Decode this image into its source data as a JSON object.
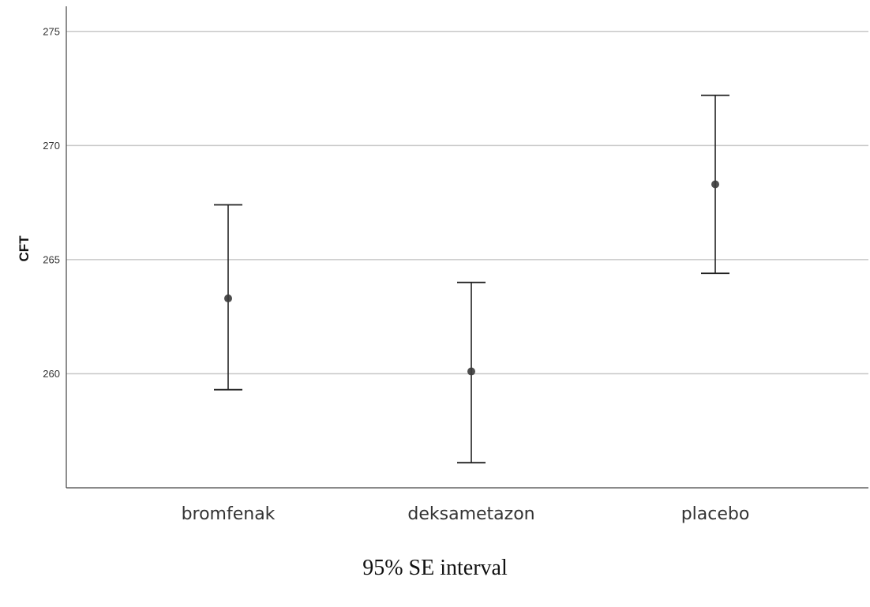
{
  "chart_data": {
    "type": "errorbar",
    "ylabel": "CFT",
    "xlabel": "",
    "categories": [
      "bromfenak",
      "deksametazon",
      "placebo"
    ],
    "means": [
      263.3,
      260.1,
      268.3
    ],
    "lower": [
      259.3,
      256.1,
      264.4
    ],
    "upper": [
      267.4,
      264.0,
      272.2
    ],
    "yticks": [
      "260",
      "265",
      "270",
      "275"
    ],
    "ylim": [
      255.0,
      276.1
    ],
    "grid": "horizontal",
    "colors": {
      "grid": "#c8c8c8",
      "axis": "#444444",
      "bar": "#222222",
      "point": "#3a3a3a"
    }
  },
  "caption": "95% SE interval"
}
